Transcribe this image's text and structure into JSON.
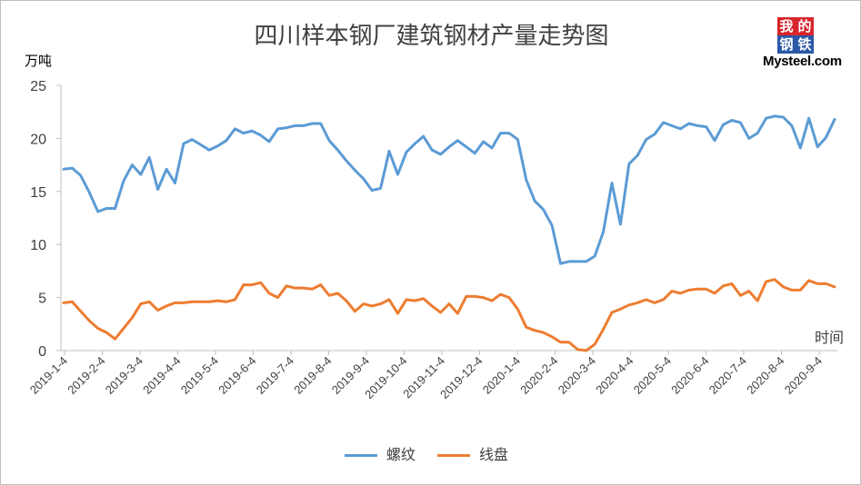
{
  "chart_data": {
    "type": "line",
    "title": "四川样本钢厂建筑钢材产量走势图",
    "ylabel": "万吨",
    "xlabel": "时间",
    "ylim": [
      0,
      25
    ],
    "yticks": [
      0,
      5,
      10,
      15,
      20,
      25
    ],
    "grid": false,
    "legend_position": "bottom",
    "xtick_labels": [
      "2019-1-4",
      "2019-2-4",
      "2019-3-4",
      "2019-4-4",
      "2019-5-4",
      "2019-6-4",
      "2019-7-4",
      "2019-8-4",
      "2019-9-4",
      "2019-10-4",
      "2019-11-4",
      "2019-12-4",
      "2020-1-4",
      "2020-2-4",
      "2020-3-4",
      "2020-4-4",
      "2020-5-4",
      "2020-6-4",
      "2020-7-4",
      "2020-8-4",
      "2020-9-4"
    ],
    "series": [
      {
        "name": "螺纹",
        "color": "#5b9bd5",
        "values": [
          17.1,
          17.2,
          16.5,
          14.9,
          13.1,
          13.4,
          13.4,
          16.0,
          17.5,
          16.6,
          18.2,
          15.2,
          17.1,
          15.8,
          19.5,
          19.9,
          19.4,
          18.9,
          19.3,
          19.8,
          20.9,
          20.5,
          20.7,
          20.3,
          19.7,
          20.9,
          21.0,
          21.2,
          21.2,
          21.4,
          21.4,
          19.8,
          18.9,
          17.9,
          17.0,
          16.2,
          15.1,
          15.3,
          18.8,
          16.6,
          18.7,
          19.5,
          20.2,
          18.9,
          18.5,
          19.2,
          19.8,
          19.2,
          18.6,
          19.7,
          19.1,
          20.5,
          20.5,
          19.9,
          16.1,
          14.1,
          13.3,
          11.8,
          8.2,
          8.4,
          8.4,
          8.4,
          8.9,
          11.2,
          15.8,
          11.9,
          17.6,
          18.4,
          19.9,
          20.4,
          21.5,
          21.2,
          20.9,
          21.4,
          21.2,
          21.1,
          19.8,
          21.3,
          21.7,
          21.5,
          20.0,
          20.5,
          21.9,
          22.1,
          22.0,
          21.2,
          19.1,
          21.9,
          19.2,
          20.1,
          21.8
        ]
      },
      {
        "name": "线盘",
        "color": "#ed7d31",
        "values": [
          4.5,
          4.6,
          3.7,
          2.8,
          2.1,
          1.7,
          1.1,
          2.1,
          3.1,
          4.4,
          4.6,
          3.8,
          4.2,
          4.5,
          4.5,
          4.6,
          4.6,
          4.6,
          4.7,
          4.6,
          4.8,
          6.2,
          6.2,
          6.4,
          5.4,
          5.0,
          6.1,
          5.9,
          5.9,
          5.8,
          6.2,
          5.2,
          5.4,
          4.7,
          3.7,
          4.4,
          4.2,
          4.4,
          4.8,
          3.5,
          4.8,
          4.7,
          4.9,
          4.2,
          3.6,
          4.4,
          3.5,
          5.1,
          5.1,
          5.0,
          4.7,
          5.3,
          5.0,
          3.9,
          2.2,
          1.9,
          1.7,
          1.3,
          0.8,
          0.8,
          0.1,
          0.0,
          0.6,
          2.0,
          3.6,
          3.9,
          4.3,
          4.5,
          4.8,
          4.5,
          4.8,
          5.6,
          5.4,
          5.7,
          5.8,
          5.8,
          5.4,
          6.1,
          6.3,
          5.2,
          5.6,
          4.7,
          6.5,
          6.7,
          6.0,
          5.7,
          5.7,
          6.6,
          6.3,
          6.3,
          6.0
        ]
      }
    ]
  },
  "logo": {
    "chars": [
      "我",
      "的",
      "钢",
      "铁"
    ],
    "brand": "Mysteel.com"
  }
}
